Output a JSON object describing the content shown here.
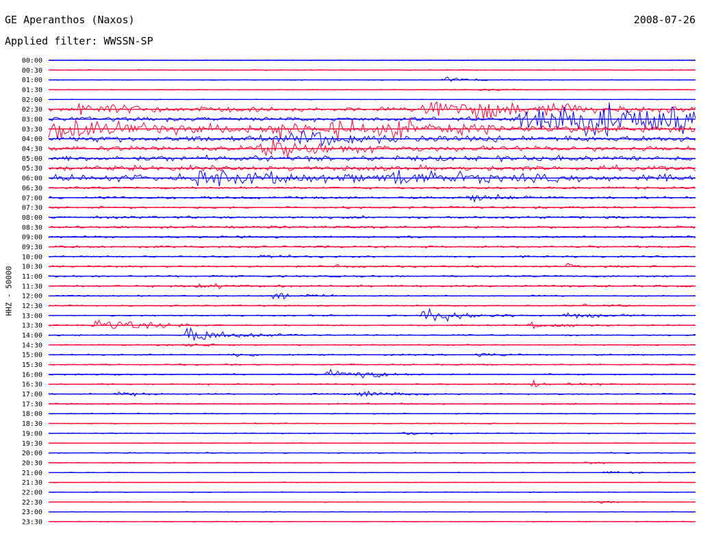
{
  "header": {
    "station": "GE Aperanthos (Naxos)",
    "date": "2008-07-26",
    "filter": "Applied filter: WWSSN-SP"
  },
  "axis": {
    "channel_label": "HHZ - 50000"
  },
  "colors": {
    "even_rows": "#0000ff",
    "odd_rows": "#ff0033"
  },
  "chart_data": {
    "type": "line",
    "kind": "helicorder",
    "y_ticks": [
      "00:00",
      "00:30",
      "01:00",
      "01:30",
      "02:00",
      "02:30",
      "03:00",
      "03:30",
      "04:00",
      "04:30",
      "05:00",
      "05:30",
      "06:00",
      "06:30",
      "07:00",
      "07:30",
      "08:00",
      "08:30",
      "09:00",
      "09:30",
      "10:00",
      "10:30",
      "11:00",
      "11:30",
      "12:00",
      "12:30",
      "13:00",
      "13:30",
      "14:00",
      "14:30",
      "15:00",
      "15:30",
      "16:00",
      "16:30",
      "17:00",
      "17:30",
      "18:00",
      "18:30",
      "19:00",
      "19:30",
      "20:00",
      "20:30",
      "21:00",
      "21:30",
      "22:00",
      "22:30",
      "23:00",
      "23:30"
    ],
    "row_minutes": 30,
    "row_colors_alternate": [
      "blue",
      "red"
    ],
    "noise_level": [
      0.08,
      0.12,
      0.12,
      0.1,
      0.1,
      0.55,
      0.6,
      1.0,
      0.85,
      0.7,
      0.75,
      0.7,
      0.95,
      0.35,
      0.35,
      0.3,
      0.35,
      0.35,
      0.3,
      0.3,
      0.25,
      0.25,
      0.25,
      0.3,
      0.2,
      0.2,
      0.2,
      0.2,
      0.2,
      0.2,
      0.2,
      0.2,
      0.2,
      0.2,
      0.2,
      0.2,
      0.15,
      0.15,
      0.15,
      0.12,
      0.15,
      0.12,
      0.12,
      0.12,
      0.12,
      0.12,
      0.12,
      0.12
    ],
    "events": [
      {
        "row": 2,
        "minute": 18.5,
        "amp": 1.0,
        "len": 1.0
      },
      {
        "row": 3,
        "minute": 20,
        "amp": 0.4,
        "len": 1.0
      },
      {
        "row": 5,
        "minute": 1.5,
        "amp": 1.6,
        "len": 3.0
      },
      {
        "row": 5,
        "minute": 17.5,
        "amp": 3.5,
        "len": 5.0
      },
      {
        "row": 6,
        "minute": 22,
        "amp": 4.5,
        "len": 8.0
      },
      {
        "row": 7,
        "minute": 0,
        "amp": 2.5,
        "len": 3.5
      },
      {
        "row": 7,
        "minute": 10.5,
        "amp": 2.0,
        "len": 1.5
      },
      {
        "row": 7,
        "minute": 13,
        "amp": 1.8,
        "len": 2.5
      },
      {
        "row": 7,
        "minute": 16,
        "amp": 1.5,
        "len": 2.5
      },
      {
        "row": 8,
        "minute": 11.5,
        "amp": 3.0,
        "len": 2.0
      },
      {
        "row": 9,
        "minute": 10,
        "amp": 2.5,
        "len": 2.5
      },
      {
        "row": 12,
        "minute": 7,
        "amp": 1.8,
        "len": 4.0
      },
      {
        "row": 12,
        "minute": 16,
        "amp": 1.8,
        "len": 3.0
      },
      {
        "row": 14,
        "minute": 19.5,
        "amp": 1.2,
        "len": 1.5
      },
      {
        "row": 20,
        "minute": 10,
        "amp": 0.6,
        "len": 1.0
      },
      {
        "row": 21,
        "minute": 13.5,
        "amp": 0.7,
        "len": 1.0
      },
      {
        "row": 21,
        "minute": 24,
        "amp": 0.6,
        "len": 1.0
      },
      {
        "row": 23,
        "minute": 7,
        "amp": 0.6,
        "len": 1.5
      },
      {
        "row": 24,
        "minute": 10.5,
        "amp": 1.2,
        "len": 1.2
      },
      {
        "row": 25,
        "minute": 25,
        "amp": 0.5,
        "len": 1.0
      },
      {
        "row": 26,
        "minute": 17.5,
        "amp": 2.2,
        "len": 1.8
      },
      {
        "row": 26,
        "minute": 24,
        "amp": 0.8,
        "len": 1.5
      },
      {
        "row": 27,
        "minute": 2.2,
        "amp": 2.2,
        "len": 2.0
      },
      {
        "row": 27,
        "minute": 22.5,
        "amp": 1.0,
        "len": 1.2
      },
      {
        "row": 28,
        "minute": 6.5,
        "amp": 2.2,
        "len": 2.0
      },
      {
        "row": 29,
        "minute": 6.5,
        "amp": 0.6,
        "len": 1.0
      },
      {
        "row": 30,
        "minute": 8.5,
        "amp": 0.7,
        "len": 1.0
      },
      {
        "row": 30,
        "minute": 20,
        "amp": 0.6,
        "len": 1.0
      },
      {
        "row": 32,
        "minute": 13,
        "amp": 1.0,
        "len": 1.5
      },
      {
        "row": 32,
        "minute": 14.5,
        "amp": 0.8,
        "len": 1.0
      },
      {
        "row": 33,
        "minute": 22.5,
        "amp": 0.8,
        "len": 1.5
      },
      {
        "row": 34,
        "minute": 3.3,
        "amp": 0.8,
        "len": 1.0
      },
      {
        "row": 34,
        "minute": 14.5,
        "amp": 0.9,
        "len": 1.5
      },
      {
        "row": 38,
        "minute": 16.5,
        "amp": 0.5,
        "len": 1.0
      },
      {
        "row": 41,
        "minute": 25,
        "amp": 0.5,
        "len": 1.0
      },
      {
        "row": 42,
        "minute": 26,
        "amp": 0.4,
        "len": 1.0
      },
      {
        "row": 45,
        "minute": 25,
        "amp": 0.4,
        "len": 1.0
      }
    ],
    "bursts": [
      {
        "row": 6,
        "start_minute": 21.5,
        "end_minute": 30,
        "amp": 1.6
      }
    ]
  }
}
